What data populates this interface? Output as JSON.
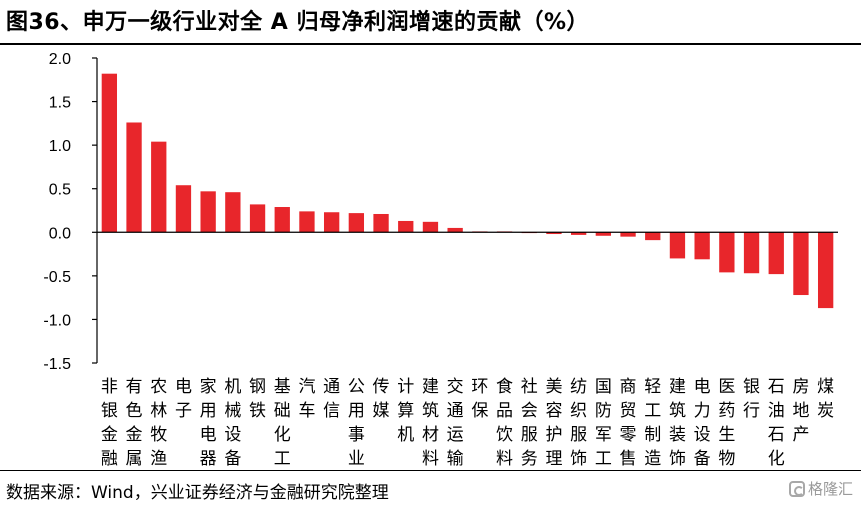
{
  "title": "图36、申万一级行业对全 A 归母净利润增速的贡献（%）",
  "source": "数据来源：Wind，兴业证券经济与金融研究院整理",
  "watermark": "格隆汇",
  "colors": {
    "bar": "#e8262b",
    "axis": "#000000",
    "text": "#000000"
  },
  "chart_data": {
    "type": "bar",
    "title": "图36、申万一级行业对全 A 归母净利润增速的贡献（%）",
    "xlabel": "",
    "ylabel": "",
    "ylim": [
      -1.5,
      2.0
    ],
    "yticks": [
      2.0,
      1.5,
      1.0,
      0.5,
      0.0,
      -0.5,
      -1.0,
      -1.5
    ],
    "ytick_labels": [
      "2.0",
      "1.5",
      "1.0",
      "0.5",
      "0.0",
      "-0.5",
      "-1.0",
      "-1.5"
    ],
    "grid": false,
    "legend": "none",
    "categories": [
      "非银金融",
      "有色金属",
      "农林牧渔",
      "电子",
      "家用电器",
      "机械设备",
      "钢铁",
      "基础化工",
      "汽车",
      "通信",
      "公用事业",
      "传媒",
      "计算机",
      "建筑材料",
      "交通运输",
      "环保",
      "食品饮料",
      "社会服务",
      "美容护理",
      "纺织服饰",
      "国防军工",
      "商贸零售",
      "轻工制造",
      "建筑装饰",
      "电力设备",
      "医药生物",
      "银行",
      "石油石化",
      "房地产",
      "煤炭"
    ],
    "values": [
      1.82,
      1.26,
      1.04,
      0.54,
      0.47,
      0.46,
      0.32,
      0.29,
      0.24,
      0.23,
      0.22,
      0.21,
      0.13,
      0.12,
      0.05,
      0.01,
      0.01,
      0.0,
      -0.02,
      -0.03,
      -0.04,
      -0.05,
      -0.09,
      -0.3,
      -0.31,
      -0.46,
      -0.47,
      -0.48,
      -0.72,
      -0.87
    ]
  }
}
